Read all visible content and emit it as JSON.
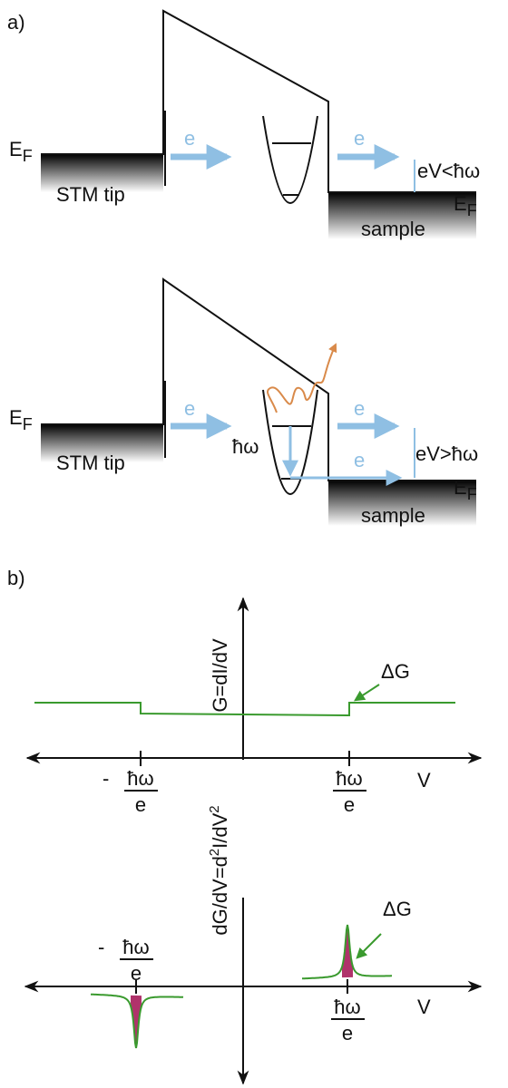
{
  "panel_a": {
    "label": "a)",
    "top": {
      "tip_fermi": {
        "main": "E",
        "sub": "F"
      },
      "tip": "STM tip",
      "electron_left": "e",
      "electron_right": "e",
      "bias": "eV<ħω",
      "sample": "sample",
      "sample_fermi": {
        "main": "E",
        "sub": "F"
      }
    },
    "bottom": {
      "tip_fermi": {
        "main": "E",
        "sub": "F"
      },
      "tip": "STM tip",
      "electron_left": "e",
      "phonon": "ħω",
      "electron_elastic": "e",
      "electron_inelastic": "e",
      "bias": "eV>ħω",
      "sample": "sample",
      "sample_fermi": {
        "main": "E",
        "sub": "F"
      }
    }
  },
  "panel_b": {
    "label": "b)",
    "upper": {
      "y_label": "G=dI/dV",
      "delta": "ΔG",
      "neg_sign": "-",
      "neg_num": "ħω",
      "neg_den": "e",
      "pos_num": "ħω",
      "pos_den": "e",
      "x_label": "V"
    },
    "lower": {
      "y_label": [
        "dG/dV=d",
        "2",
        "I/dV",
        "2"
      ],
      "delta": "ΔG",
      "neg_sign": "-",
      "neg_num": "ħω",
      "neg_den": "e",
      "pos_num": "ħω",
      "pos_den": "e",
      "x_label": "V"
    }
  }
}
